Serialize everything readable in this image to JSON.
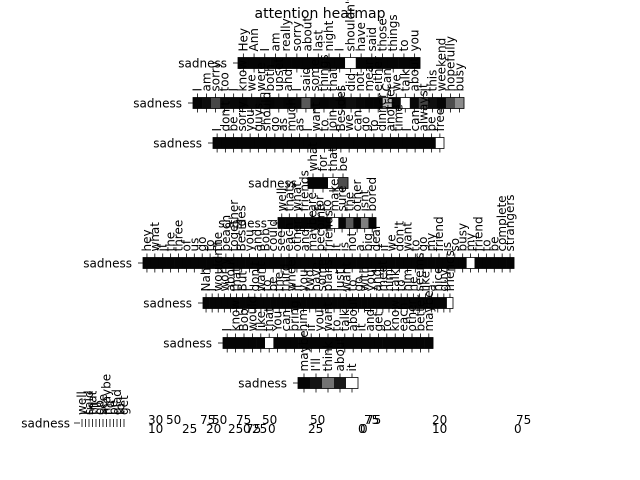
{
  "chart_data": {
    "type": "heatmap",
    "title": "attention heatmap",
    "xlabel": "",
    "ylabel": "",
    "colormap": "grayscale (black = 0, white = 1)",
    "heatmaps": [
      {
        "row_label": "sadness",
        "tokens": [
          "Hey",
          "Ann",
          "I",
          "am",
          "really",
          "sorry",
          "about",
          "last",
          "night",
          "I",
          "shouldn't",
          "have",
          "said",
          "those",
          "things",
          "to",
          "you"
        ],
        "weights": [
          0.02,
          0.02,
          0.02,
          0.02,
          0.02,
          0.02,
          0.02,
          0.02,
          0.02,
          0.02,
          1.0,
          0.02,
          0.02,
          0.02,
          0.02,
          0.02,
          0.02
        ]
      },
      {
        "row_label": "sadness",
        "tokens": [
          "I",
          "am",
          "sorry",
          "too",
          "I",
          "know",
          "we",
          "were",
          "both",
          "upset",
          "and",
          "I",
          "said",
          "some",
          "things",
          "that",
          "I",
          "did",
          "not",
          "mean",
          "either",
          "Can",
          "we",
          "talk",
          "about",
          "it",
          "this",
          "weekend",
          "hopefully",
          "busy"
        ],
        "weights": [
          0.02,
          0.05,
          0.28,
          0.04,
          0.03,
          0.02,
          0.04,
          0.03,
          0.02,
          0.03,
          0.02,
          0.03,
          0.35,
          0.03,
          0.02,
          0.03,
          0.02,
          0.06,
          0.03,
          0.02,
          0.02,
          0.72,
          0.03,
          1.0,
          0.03,
          0.26,
          0.06,
          0.02,
          0.3,
          0.55
        ]
      },
      {
        "row_label": "sadness",
        "tokens": [
          "I",
          "don't",
          "be",
          "sorry",
          "you",
          "guys",
          "should",
          "go",
          "as",
          "much",
          "as",
          "I",
          "want",
          "to",
          "join",
          "Besides",
          "we",
          "can",
          "go",
          "to",
          "dinner",
          "another",
          "time",
          "I",
          "can",
          "always",
          "be",
          "free"
        ],
        "weights": [
          0.02,
          0.02,
          0.02,
          0.02,
          0.02,
          0.02,
          0.02,
          0.02,
          0.02,
          0.02,
          0.02,
          0.02,
          0.02,
          0.02,
          0.02,
          0.02,
          0.02,
          0.02,
          0.02,
          0.02,
          0.02,
          0.02,
          0.02,
          0.02,
          0.02,
          0.02,
          0.02,
          1.0
        ]
      },
      {
        "row_label": "sadness",
        "tokens": [
          "what",
          "for",
          "that",
          "be"
        ],
        "weights": [
          0.02,
          0.02,
          1.0,
          0.3
        ]
      },
      {
        "row_label": "sadness",
        "tokens": [
          "well",
          "thats",
          "what",
          "friends",
          "are",
          "for",
          "to",
          "make",
          "sure",
          "the",
          "other",
          "isnt",
          "bored"
        ],
        "weights": [
          0.02,
          0.02,
          0.02,
          0.02,
          0.02,
          0.02,
          0.02,
          1.0,
          0.02,
          0.35,
          0.02,
          0.5,
          0.02
        ]
      },
      {
        "row_label": "sadness",
        "tokens": [
          "hey",
          "what",
          "if",
          "the",
          "three",
          "of",
          "us",
          "go",
          "to",
          "the",
          "beach",
          "together",
          "Besides",
          "you",
          "and",
          "Bob",
          "could",
          "see",
          "each",
          "other",
          "and",
          "maybe",
          "become",
          "friends",
          "It",
          "is",
          "not",
          "a",
          "big",
          "deal",
          "if",
          "we",
          "don't",
          "want",
          "to",
          "go",
          "my",
          "friend",
          "is",
          "so",
          "busy",
          "my",
          "friend",
          "to",
          "be",
          "complete",
          "strangers"
        ],
        "weights": [
          0.02,
          0.02,
          0.02,
          0.02,
          0.02,
          0.02,
          0.02,
          0.02,
          0.02,
          0.02,
          0.02,
          0.02,
          0.02,
          0.02,
          0.02,
          0.02,
          0.02,
          0.02,
          0.02,
          0.02,
          0.02,
          0.02,
          0.02,
          0.02,
          0.02,
          0.02,
          0.02,
          0.02,
          0.02,
          0.02,
          0.02,
          0.02,
          0.02,
          0.02,
          0.02,
          0.02,
          0.02,
          0.02,
          0.02,
          0.02,
          0.02,
          1.0,
          0.02,
          0.02,
          0.02,
          0.02,
          0.02
        ]
      },
      {
        "row_label": "sadness",
        "tokens": [
          "Nah",
          "I",
          "wouldn't",
          "worry",
          "about",
          "that",
          "But",
          "I",
          "don't",
          "want",
          "to",
          "be",
          "the",
          "third",
          "wheel",
          "if",
          "you",
          "two",
          "have",
          "some",
          "plans",
          "I",
          "just",
          "want",
          "to",
          "go",
          "with",
          "you",
          "and",
          "meet",
          "him",
          "talk",
          "to",
          "him",
          "he",
          "seems",
          "like",
          "a",
          "nice",
          "guy",
          "friends"
        ],
        "weights": [
          0.02,
          0.02,
          0.02,
          0.02,
          0.02,
          0.02,
          0.02,
          0.02,
          0.02,
          0.02,
          0.02,
          0.02,
          0.02,
          0.02,
          0.02,
          0.02,
          0.02,
          0.02,
          0.02,
          0.02,
          0.02,
          0.02,
          0.02,
          0.02,
          0.02,
          0.02,
          0.02,
          0.02,
          0.02,
          0.02,
          0.02,
          0.02,
          0.02,
          0.02,
          0.02,
          0.02,
          0.02,
          0.02,
          0.02,
          0.02,
          1.0
        ]
      },
      {
        "row_label": "sadness",
        "tokens": [
          "I",
          "know",
          "Bob",
          "would",
          "like",
          "that",
          "You",
          "can",
          "bring",
          "him",
          "if",
          "you",
          "want",
          "to",
          "talk",
          "about",
          "it",
          "and",
          "get",
          "to",
          "know",
          "each",
          "other",
          "better",
          "maybe"
        ],
        "weights": [
          0.02,
          0.02,
          0.02,
          0.02,
          0.02,
          1.0,
          0.02,
          0.02,
          0.02,
          0.02,
          0.02,
          0.02,
          0.02,
          0.02,
          0.02,
          0.02,
          0.02,
          0.02,
          0.02,
          0.02,
          0.02,
          0.02,
          0.02,
          0.02,
          0.02
        ]
      },
      {
        "row_label": "sadness",
        "tokens": [
          "maybe",
          "I'll",
          "think",
          "about",
          "it"
        ],
        "weights": [
          0.02,
          0.08,
          0.45,
          0.1,
          1.0
        ]
      }
    ],
    "last_row": {
      "row_label": "sadness",
      "tokens": [
        "well",
        "I",
        "said",
        "that",
        "I'll",
        "go",
        "see",
        "maybe",
        "I'd",
        "be",
        "glad",
        "to",
        "get"
      ],
      "tick_labels": [
        "30",
        "10",
        "50",
        "25",
        "75",
        "20",
        "50",
        "25",
        "75",
        "0",
        "75",
        "25",
        "50",
        "0",
        "50",
        "25",
        "75",
        "0",
        "75",
        "0",
        "20",
        "10",
        "75",
        "0"
      ]
    }
  }
}
